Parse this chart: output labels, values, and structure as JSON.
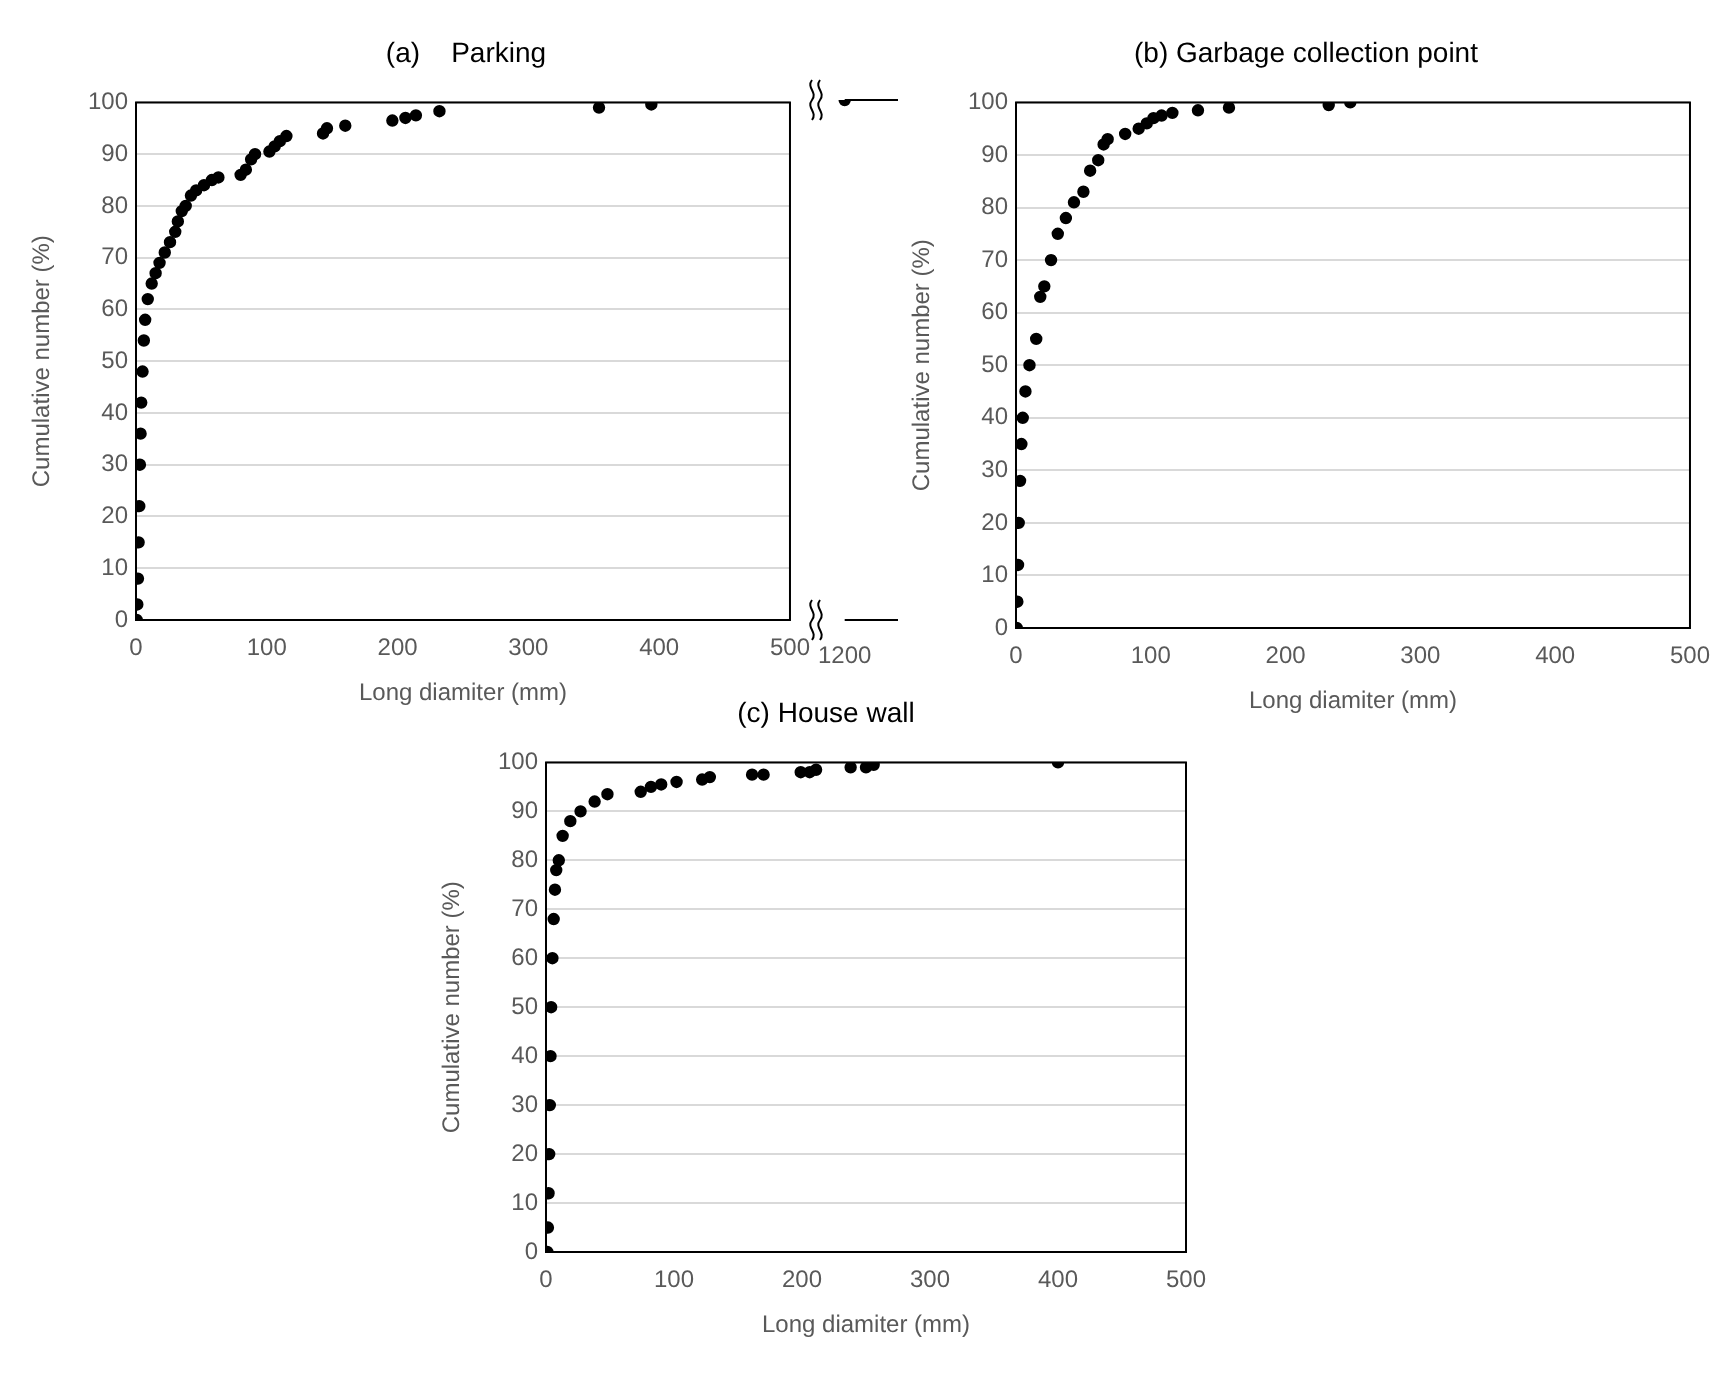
{
  "chart_data": [
    {
      "type": "scatter",
      "title": "(a)    Parking",
      "xlabel": "Long diamiter (mm)",
      "ylabel": "Cumulative number (%)",
      "xlim": [
        0,
        500
      ],
      "xticks": [
        0,
        100,
        200,
        300,
        400,
        500
      ],
      "ylim": [
        0,
        100
      ],
      "yticks": [
        0,
        10,
        20,
        30,
        40,
        50,
        60,
        70,
        80,
        90,
        100
      ],
      "grid": "y",
      "marker": "circle",
      "legend": false,
      "series": [
        {
          "color": "#000000",
          "x": [
            0.5,
            1,
            1.5,
            2,
            2.5,
            3,
            3.5,
            4,
            5,
            6,
            7,
            9,
            12,
            15,
            18,
            22,
            26,
            30,
            32,
            35,
            38,
            42,
            46,
            52,
            58,
            63,
            80,
            84,
            88,
            91,
            102,
            106,
            110,
            115,
            143,
            146,
            160,
            196,
            206,
            214,
            232,
            354,
            394
          ],
          "values": [
            0,
            3,
            8,
            15,
            22,
            30,
            36,
            42,
            48,
            54,
            58,
            62,
            65,
            67,
            69,
            71,
            73,
            75,
            77,
            79,
            80,
            82,
            83,
            84,
            85,
            85.5,
            86,
            87,
            89,
            90,
            90.5,
            91.5,
            92.5,
            93.5,
            94,
            95,
            95.5,
            96.5,
            97,
            97.5,
            98.3,
            99,
            99.6
          ]
        }
      ]
    },
    {
      "type": "scatter",
      "categories": [
        "1200"
      ],
      "ylim": [
        0,
        100
      ],
      "yticks": [
        0,
        10,
        20,
        30,
        40,
        50,
        60,
        70,
        80,
        90,
        100
      ],
      "marker": "circle",
      "legend": false,
      "tick_labels": "x",
      "series": [
        {
          "color": "#000000",
          "values": [
            100
          ]
        }
      ]
    },
    {
      "type": "scatter",
      "title": "(b) Garbage collection point",
      "xlabel": "Long diamiter (mm)",
      "ylabel": "Cumulative number (%)",
      "xlim": [
        0,
        500
      ],
      "xticks": [
        0,
        100,
        200,
        300,
        400,
        500
      ],
      "ylim": [
        0,
        100
      ],
      "yticks": [
        0,
        10,
        20,
        30,
        40,
        50,
        60,
        70,
        80,
        90,
        100
      ],
      "grid": "y",
      "marker": "circle",
      "legend": false,
      "series": [
        {
          "color": "#000000",
          "x": [
            0.5,
            1,
            1.5,
            2,
            3,
            4,
            5,
            7,
            10,
            15,
            18,
            21,
            26,
            31,
            37,
            43,
            50,
            55,
            61,
            65,
            68,
            81,
            91,
            97,
            102,
            108,
            116,
            135,
            158,
            232,
            248
          ],
          "values": [
            0,
            5,
            12,
            20,
            28,
            35,
            40,
            45,
            50,
            55,
            63,
            65,
            70,
            75,
            78,
            81,
            83,
            87,
            89,
            92,
            93,
            94,
            95,
            96,
            97,
            97.5,
            98,
            98.5,
            99,
            99.5,
            100
          ]
        }
      ]
    },
    {
      "type": "scatter",
      "title": "(c) House wall",
      "xlabel": "Long diamiter (mm)",
      "ylabel": "Cumulative number (%)",
      "xlim": [
        0,
        500
      ],
      "xticks": [
        0,
        100,
        200,
        300,
        400,
        500
      ],
      "ylim": [
        0,
        100
      ],
      "yticks": [
        0,
        10,
        20,
        30,
        40,
        50,
        60,
        70,
        80,
        90,
        100
      ],
      "grid": "y",
      "marker": "circle",
      "legend": false,
      "series": [
        {
          "color": "#000000",
          "x": [
            1,
            1.5,
            2,
            2.5,
            3,
            3.5,
            4,
            5,
            6,
            7,
            8,
            10,
            13,
            19,
            27,
            38,
            48,
            74,
            82,
            90,
            102,
            122,
            128,
            161,
            170,
            199,
            206,
            211,
            238,
            250,
            256,
            400
          ],
          "values": [
            0,
            5,
            12,
            20,
            30,
            40,
            50,
            60,
            68,
            74,
            78,
            80,
            85,
            88,
            90,
            92,
            93.5,
            94,
            95,
            95.5,
            96,
            96.5,
            97,
            97.5,
            97.5,
            98,
            98,
            98.5,
            99,
            99,
            99.5,
            100
          ]
        }
      ]
    }
  ]
}
